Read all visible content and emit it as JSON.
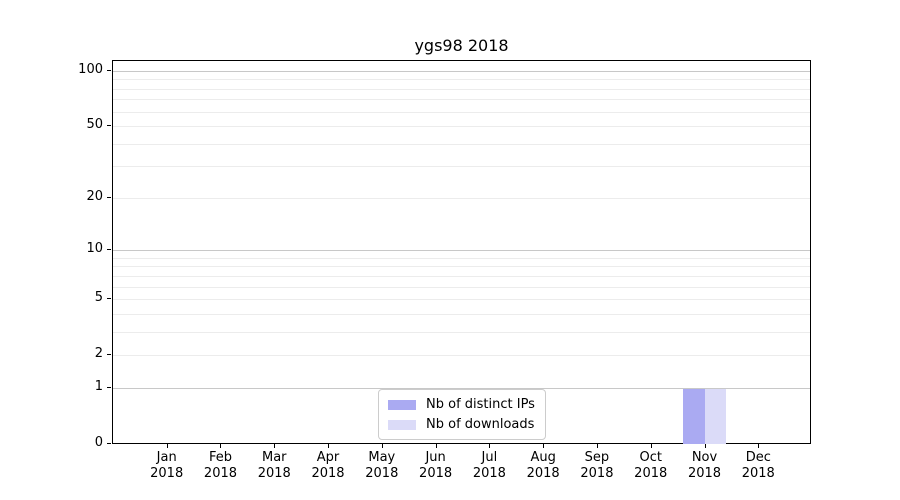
{
  "chart_data": {
    "type": "bar",
    "title": "ygs98 2018",
    "categories": [
      "Jan 2018",
      "Feb 2018",
      "Mar 2018",
      "Apr 2018",
      "May 2018",
      "Jun 2018",
      "Jul 2018",
      "Aug 2018",
      "Sep 2018",
      "Oct 2018",
      "Nov 2018",
      "Dec 2018"
    ],
    "series": [
      {
        "name": "Nb of distinct IPs",
        "color": "#aaaaf2",
        "values": [
          0,
          0,
          0,
          0,
          0,
          0,
          0,
          0,
          0,
          0,
          1,
          0
        ]
      },
      {
        "name": "Nb of downloads",
        "color": "#dbdbf8",
        "values": [
          0,
          0,
          0,
          0,
          0,
          0,
          0,
          0,
          0,
          0,
          1,
          0
        ]
      }
    ],
    "xlabel": "",
    "ylabel": "",
    "yscale": "log1p",
    "ylim": [
      0,
      114.7
    ],
    "yticks": [
      0,
      1,
      2,
      5,
      10,
      20,
      50,
      100
    ],
    "y_gridlines_major": [
      1,
      10,
      100
    ],
    "y_gridlines_minor": [
      2,
      3,
      4,
      5,
      6,
      7,
      8,
      9,
      20,
      30,
      40,
      50,
      60,
      70,
      80,
      90
    ],
    "grid": true,
    "legend_position": "lower center inside",
    "colors": {
      "grid_major": "#c8c8c8",
      "grid_minor": "#ececec",
      "spine": "#000000",
      "text": "#000000",
      "background": "#ffffff"
    }
  }
}
